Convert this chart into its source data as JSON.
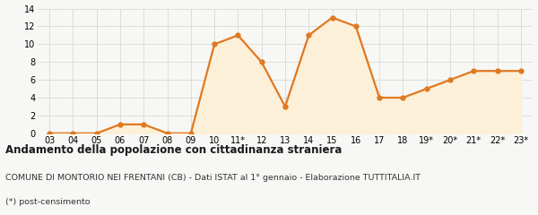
{
  "x_labels": [
    "03",
    "04",
    "05",
    "06",
    "07",
    "08",
    "09",
    "10",
    "11*",
    "12",
    "13",
    "14",
    "15",
    "16",
    "17",
    "18",
    "19*",
    "20*",
    "21*",
    "22*",
    "23*"
  ],
  "y_values": [
    0,
    0,
    0,
    1,
    1,
    0,
    0,
    10,
    11,
    8,
    3,
    11,
    13,
    12,
    4,
    4,
    5,
    6,
    7,
    7,
    7
  ],
  "line_color": "#e07820",
  "fill_color": "#fdf0d8",
  "marker_color": "#e07820",
  "background_color": "#f7f7f5",
  "grid_color": "#d8d8d8",
  "ylim": [
    0,
    14
  ],
  "yticks": [
    0,
    2,
    4,
    6,
    8,
    10,
    12,
    14
  ],
  "title": "Andamento della popolazione con cittadinanza straniera",
  "subtitle": "COMUNE DI MONTORIO NEI FRENTANI (CB) - Dati ISTAT al 1° gennaio - Elaborazione TUTTITALIA.IT",
  "footnote": "(*) post-censimento",
  "title_fontsize": 8.5,
  "subtitle_fontsize": 6.8,
  "footnote_fontsize": 6.8,
  "tick_fontsize": 7,
  "line_width": 1.6,
  "marker_size": 3.5
}
